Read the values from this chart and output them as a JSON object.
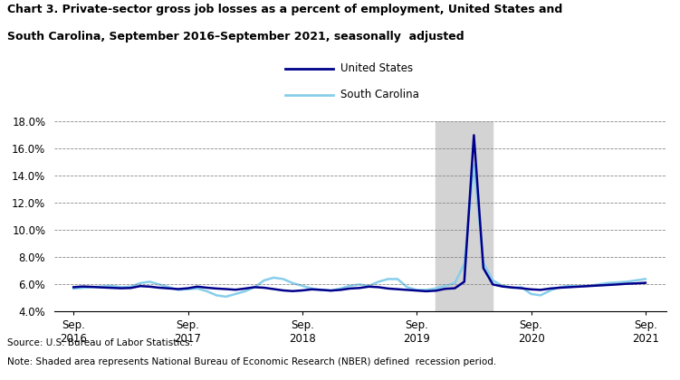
{
  "title_line1": "Chart 3. Private-sector gross job losses as a percent of employment, United States and",
  "title_line2": "South Carolina, September 2016–September 2021, seasonally  adjusted",
  "source_note_line1": "Source: U.S. Bureau of Labor Statistics.",
  "source_note_line2": "Note: Shaded area represents National Bureau of Economic Research (NBER) defined  recession period.",
  "us_color": "#00008B",
  "sc_color": "#87CEEB",
  "recession_color": "#D3D3D3",
  "recession_start": 2019.833,
  "recession_end": 2020.333,
  "ylim": [
    4.0,
    18.0
  ],
  "yticks": [
    4.0,
    6.0,
    8.0,
    10.0,
    12.0,
    14.0,
    16.0,
    18.0
  ],
  "legend_labels": [
    "United States",
    "South Carolina"
  ],
  "us_data": {
    "dates": [
      2016.667,
      2016.75,
      2016.833,
      2016.917,
      2017.0,
      2017.083,
      2017.167,
      2017.25,
      2017.333,
      2017.417,
      2017.5,
      2017.583,
      2017.667,
      2017.75,
      2017.833,
      2017.917,
      2018.0,
      2018.083,
      2018.167,
      2018.25,
      2018.333,
      2018.417,
      2018.5,
      2018.583,
      2018.667,
      2018.75,
      2018.833,
      2018.917,
      2019.0,
      2019.083,
      2019.167,
      2019.25,
      2019.333,
      2019.417,
      2019.5,
      2019.583,
      2019.667,
      2019.75,
      2019.833,
      2019.917,
      2020.0,
      2020.083,
      2020.167,
      2020.25,
      2020.333,
      2020.417,
      2020.5,
      2020.583,
      2020.667,
      2020.75,
      2020.833,
      2020.917,
      2021.0,
      2021.083,
      2021.167,
      2021.25,
      2021.333,
      2021.417,
      2021.5,
      2021.583,
      2021.667
    ],
    "values": [
      5.8,
      5.85,
      5.82,
      5.78,
      5.75,
      5.72,
      5.74,
      5.88,
      5.84,
      5.76,
      5.71,
      5.66,
      5.72,
      5.84,
      5.76,
      5.7,
      5.66,
      5.61,
      5.7,
      5.8,
      5.76,
      5.66,
      5.56,
      5.51,
      5.56,
      5.64,
      5.6,
      5.55,
      5.6,
      5.7,
      5.74,
      5.84,
      5.8,
      5.7,
      5.65,
      5.6,
      5.55,
      5.5,
      5.54,
      5.68,
      5.72,
      6.2,
      17.0,
      7.2,
      6.0,
      5.85,
      5.78,
      5.72,
      5.64,
      5.6,
      5.7,
      5.76,
      5.8,
      5.84,
      5.88,
      5.92,
      5.96,
      6.0,
      6.05,
      6.08,
      6.12
    ]
  },
  "sc_data": {
    "dates": [
      2016.667,
      2016.75,
      2016.833,
      2016.917,
      2017.0,
      2017.083,
      2017.167,
      2017.25,
      2017.333,
      2017.417,
      2017.5,
      2017.583,
      2017.667,
      2017.75,
      2017.833,
      2017.917,
      2018.0,
      2018.083,
      2018.167,
      2018.25,
      2018.333,
      2018.417,
      2018.5,
      2018.583,
      2018.667,
      2018.75,
      2018.833,
      2018.917,
      2019.0,
      2019.083,
      2019.167,
      2019.25,
      2019.333,
      2019.417,
      2019.5,
      2019.583,
      2019.667,
      2019.75,
      2019.833,
      2019.917,
      2020.0,
      2020.083,
      2020.167,
      2020.25,
      2020.333,
      2020.417,
      2020.5,
      2020.583,
      2020.667,
      2020.75,
      2020.833,
      2020.917,
      2021.0,
      2021.083,
      2021.167,
      2021.25,
      2021.333,
      2021.417,
      2021.5,
      2021.583,
      2021.667
    ],
    "values": [
      5.7,
      5.75,
      5.8,
      5.85,
      5.9,
      5.8,
      5.84,
      6.1,
      6.2,
      6.0,
      5.8,
      5.6,
      5.65,
      5.7,
      5.5,
      5.2,
      5.1,
      5.3,
      5.5,
      5.8,
      6.3,
      6.5,
      6.4,
      6.1,
      5.9,
      5.7,
      5.6,
      5.55,
      5.7,
      5.9,
      6.0,
      5.9,
      6.2,
      6.4,
      6.4,
      5.8,
      5.6,
      5.6,
      5.7,
      5.9,
      6.1,
      7.5,
      14.8,
      7.6,
      6.3,
      5.9,
      5.75,
      5.8,
      5.3,
      5.2,
      5.55,
      5.8,
      5.9,
      5.86,
      5.9,
      6.0,
      6.1,
      6.15,
      6.2,
      6.3,
      6.4
    ]
  },
  "xtick_positions": [
    2016.667,
    2017.667,
    2018.667,
    2019.667,
    2020.667,
    2021.667
  ],
  "xtick_labels": [
    "Sep.\n2016",
    "Sep.\n2017",
    "Sep.\n2018",
    "Sep.\n2019",
    "Sep.\n2020",
    "Sep.\n2021"
  ],
  "xlim": [
    2016.5,
    2021.85
  ]
}
